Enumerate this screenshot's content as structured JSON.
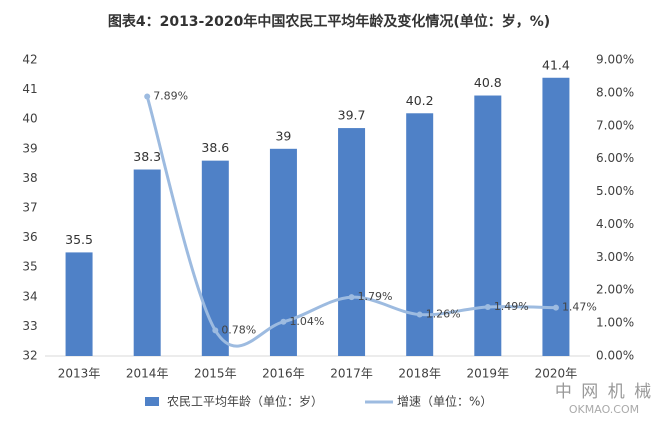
{
  "chart_data": {
    "type": "bar-line",
    "title": "图表4：2013-2020年中国农民工平均年龄及变化情况(单位：岁，%)",
    "categories": [
      "2013年",
      "2014年",
      "2015年",
      "2016年",
      "2017年",
      "2018年",
      "2019年",
      "2020年"
    ],
    "series": [
      {
        "name": "农民工平均年龄（单位：岁）",
        "type": "bar",
        "color": "#4f81c7",
        "values": [
          35.5,
          38.3,
          38.6,
          39,
          39.7,
          40.2,
          40.8,
          41.4
        ]
      },
      {
        "name": "增速（单位：%）",
        "type": "line",
        "axis": "y2",
        "color": "#9dbbe0",
        "values": [
          null,
          7.89,
          0.78,
          1.04,
          1.79,
          1.26,
          1.49,
          1.47
        ],
        "value_labels": [
          null,
          "7.89%",
          "0.78%",
          "1.04%",
          "1.79%",
          "1.26%",
          "1.49%",
          "1.47%"
        ]
      }
    ],
    "ylim": [
      32,
      42
    ],
    "yticks": [
      32,
      33,
      34,
      35,
      36,
      37,
      38,
      39,
      40,
      41,
      42
    ],
    "y2lim": [
      0,
      9
    ],
    "y2ticks": [
      {
        "value": 0,
        "label": "0.00%"
      },
      {
        "value": 1,
        "label": "1.00%"
      },
      {
        "value": 2,
        "label": "2.00%"
      },
      {
        "value": 3,
        "label": "3.00%"
      },
      {
        "value": 4,
        "label": "4.00%"
      },
      {
        "value": 5,
        "label": "5.00%"
      },
      {
        "value": 6,
        "label": "6.00%"
      },
      {
        "value": 7,
        "label": "7.00%"
      },
      {
        "value": 8,
        "label": "8.00%"
      },
      {
        "value": 9,
        "label": "9.00%"
      }
    ],
    "legend": "bottom",
    "watermark": [
      "中 网 机 械",
      "OKMAO.COM"
    ]
  }
}
